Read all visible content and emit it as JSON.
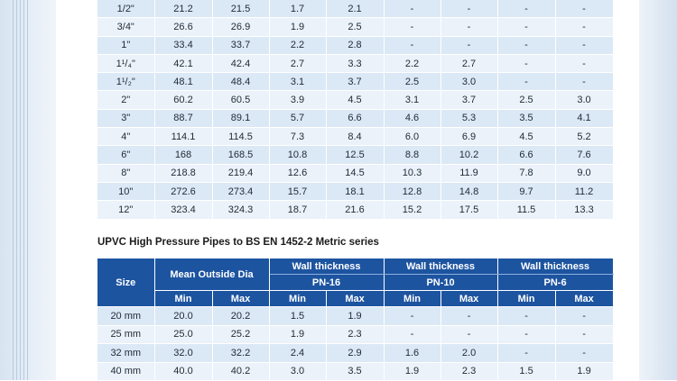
{
  "table1": {
    "rows": [
      [
        "1/2\"",
        "21.2",
        "21.5",
        "1.7",
        "2.1",
        "-",
        "-",
        "-",
        "-"
      ],
      [
        "3/4\"",
        "26.6",
        "26.9",
        "1.9",
        "2.5",
        "-",
        "-",
        "-",
        "-"
      ],
      [
        "1\"",
        "33.4",
        "33.7",
        "2.2",
        "2.8",
        "-",
        "-",
        "-",
        "-"
      ],
      [
        "1¹/₄\"",
        "42.1",
        "42.4",
        "2.7",
        "3.3",
        "2.2",
        "2.7",
        "-",
        "-"
      ],
      [
        "1¹/₂\"",
        "48.1",
        "48.4",
        "3.1",
        "3.7",
        "2.5",
        "3.0",
        "-",
        "-"
      ],
      [
        "2\"",
        "60.2",
        "60.5",
        "3.9",
        "4.5",
        "3.1",
        "3.7",
        "2.5",
        "3.0"
      ],
      [
        "3\"",
        "88.7",
        "89.1",
        "5.7",
        "6.6",
        "4.6",
        "5.3",
        "3.5",
        "4.1"
      ],
      [
        "4\"",
        "114.1",
        "114.5",
        "7.3",
        "8.4",
        "6.0",
        "6.9",
        "4.5",
        "5.2"
      ],
      [
        "6\"",
        "168",
        "168.5",
        "10.8",
        "12.5",
        "8.8",
        "10.2",
        "6.6",
        "7.6"
      ],
      [
        "8\"",
        "218.8",
        "219.4",
        "12.6",
        "14.5",
        "10.3",
        "11.9",
        "7.8",
        "9.0"
      ],
      [
        "10\"",
        "272.6",
        "273.4",
        "15.7",
        "18.1",
        "12.8",
        "14.8",
        "9.7",
        "11.2"
      ],
      [
        "12\"",
        "323.4",
        "324.3",
        "18.7",
        "21.6",
        "15.2",
        "17.5",
        "11.5",
        "13.3"
      ]
    ]
  },
  "section_title": "UPVC High Pressure Pipes to BS EN 1452-2 Metric series",
  "table2": {
    "header": {
      "size": "Size",
      "mean_od": "Mean Outside Dia",
      "wall1": "Wall thickness",
      "wall2": "Wall thickness",
      "wall3": "Wall thickness",
      "pn16": "PN-16",
      "pn10": "PN-10",
      "pn6": "PN-6",
      "min": "Min",
      "max": "Max"
    },
    "rows": [
      [
        "20 mm",
        "20.0",
        "20.2",
        "1.5",
        "1.9",
        "-",
        "-",
        "-",
        "-"
      ],
      [
        "25 mm",
        "25.0",
        "25.2",
        "1.9",
        "2.3",
        "-",
        "-",
        "-",
        "-"
      ],
      [
        "32 mm",
        "32.0",
        "32.2",
        "2.4",
        "2.9",
        "1.6",
        "2.0",
        "-",
        "-"
      ],
      [
        "40 mm",
        "40.0",
        "40.2",
        "3.0",
        "3.5",
        "1.9",
        "2.3",
        "1.5",
        "1.9"
      ]
    ]
  }
}
